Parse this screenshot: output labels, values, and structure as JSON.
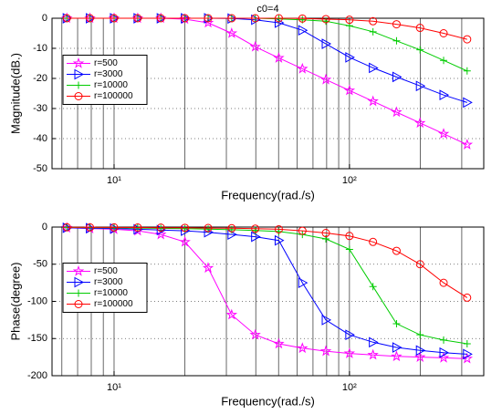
{
  "chart_data": [
    {
      "type": "line",
      "title": "c0=4",
      "x_label": "Frequency(rad./s)",
      "y_label": "Magnitude(dB.)",
      "xscale": "log",
      "xlim": [
        5.45,
        372
      ],
      "xticks": [
        {
          "value": 10,
          "label": "10¹"
        },
        {
          "value": 100,
          "label": "10²"
        }
      ],
      "xminor": [
        6,
        7,
        8,
        9,
        20,
        30,
        40,
        50,
        60,
        70,
        80,
        90,
        200,
        300
      ],
      "ylim": [
        -50,
        0
      ],
      "yticks": [
        0,
        -10,
        -20,
        -30,
        -40,
        -50
      ],
      "grid": true,
      "legend": "center left",
      "x": [
        6.3,
        7.9,
        10,
        12.6,
        15.8,
        20,
        25.1,
        31.6,
        39.8,
        50.1,
        63.1,
        79.4,
        100,
        125.9,
        158.5,
        199.5,
        251.2,
        316.2
      ],
      "series": [
        {
          "name": "r=500",
          "color": "#ff00ff",
          "marker": "star",
          "values": [
            0,
            0,
            0,
            0,
            0,
            -0.3,
            -1.5,
            -5,
            -9.5,
            -13.2,
            -16.8,
            -20.4,
            -24,
            -27.6,
            -31.2,
            -34.8,
            -38.4,
            -42
          ]
        },
        {
          "name": "r=3000",
          "color": "#0000ff",
          "marker": "triangle-right",
          "values": [
            0,
            0,
            0,
            0,
            0,
            0,
            0,
            -0.1,
            -0.5,
            -1.5,
            -4,
            -8.5,
            -13,
            -16.5,
            -19.5,
            -22.5,
            -25.5,
            -28
          ]
        },
        {
          "name": "r=10000",
          "color": "#00cc00",
          "marker": "plus",
          "values": [
            0,
            0,
            0,
            0,
            0,
            0,
            0,
            0,
            0,
            -0.2,
            -0.5,
            -1,
            -2.5,
            -4.5,
            -7.5,
            -10.5,
            -14,
            -17.5
          ]
        },
        {
          "name": "r=100000",
          "color": "#ff0000",
          "marker": "circle",
          "values": [
            0,
            0,
            0,
            0,
            0,
            0,
            0,
            0,
            0,
            0,
            -0.1,
            -0.3,
            -0.5,
            -1,
            -2,
            -3.2,
            -5,
            -7
          ]
        }
      ]
    },
    {
      "type": "line",
      "x_label": "Frequency(rad./s)",
      "y_label": "Phase(degree)",
      "xscale": "log",
      "xlim": [
        5.45,
        372
      ],
      "xticks": [
        {
          "value": 10,
          "label": "10¹"
        },
        {
          "value": 100,
          "label": "10²"
        }
      ],
      "xminor": [
        6,
        7,
        8,
        9,
        20,
        30,
        40,
        50,
        60,
        70,
        80,
        90,
        200,
        300
      ],
      "ylim": [
        -200,
        0
      ],
      "yticks": [
        0,
        -50,
        -100,
        -150,
        -200
      ],
      "grid": true,
      "legend": "center left",
      "x": [
        6.3,
        7.9,
        10,
        12.6,
        15.8,
        20,
        25.1,
        31.6,
        39.8,
        50.1,
        63.1,
        79.4,
        100,
        125.9,
        158.5,
        199.5,
        251.2,
        316.2
      ],
      "series": [
        {
          "name": "r=500",
          "color": "#ff00ff",
          "marker": "star",
          "values": [
            -1,
            -2,
            -3,
            -5,
            -10,
            -20,
            -55,
            -118,
            -145,
            -157,
            -163,
            -167,
            -170,
            -172,
            -174,
            -175,
            -176,
            -177
          ]
        },
        {
          "name": "r=3000",
          "color": "#0000ff",
          "marker": "triangle-right",
          "values": [
            -1,
            -1.5,
            -2,
            -3,
            -4,
            -5,
            -7,
            -10,
            -13,
            -18,
            -75,
            -125,
            -145,
            -155,
            -162,
            -166,
            -169,
            -171
          ]
        },
        {
          "name": "r=10000",
          "color": "#00cc00",
          "marker": "plus",
          "values": [
            -0.5,
            -0.7,
            -1,
            -1.3,
            -1.7,
            -2.2,
            -2.8,
            -3.5,
            -4.5,
            -6,
            -10,
            -16,
            -30,
            -80,
            -130,
            -145,
            -152,
            -157
          ]
        },
        {
          "name": "r=100000",
          "color": "#ff0000",
          "marker": "circle",
          "values": [
            -0.3,
            -0.4,
            -0.5,
            -0.6,
            -0.8,
            -1,
            -1.3,
            -1.6,
            -2.2,
            -3,
            -5,
            -8,
            -12,
            -20,
            -32,
            -50,
            -75,
            -95
          ]
        }
      ]
    }
  ]
}
